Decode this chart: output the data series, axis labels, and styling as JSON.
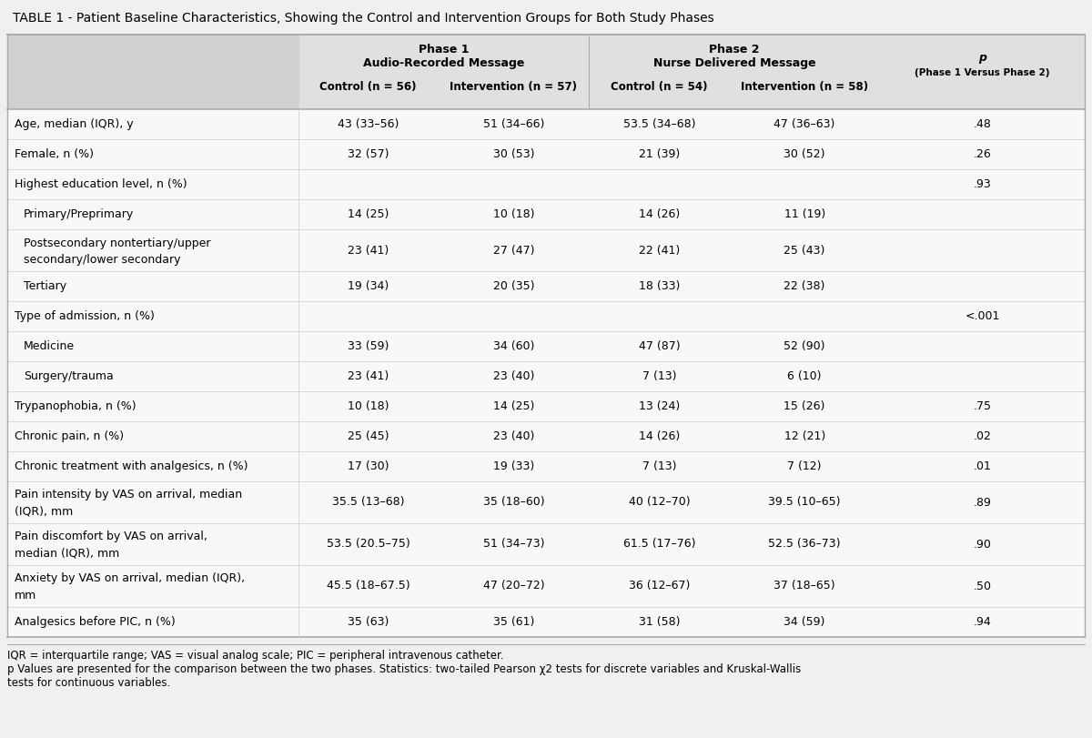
{
  "title": "TABLE 1 - Patient Baseline Characteristics, Showing the Control and Intervention Groups for Both Study Phases",
  "rows": [
    {
      "label": "Age, median (IQR), y",
      "c1": "43 (33–56)",
      "c2": "51 (34–66)",
      "c3": "53.5 (34–68)",
      "c4": "47 (36–63)",
      "p": ".48",
      "indent": false,
      "multiline": false
    },
    {
      "label": "Female, n (%)",
      "c1": "32 (57)",
      "c2": "30 (53)",
      "c3": "21 (39)",
      "c4": "30 (52)",
      "p": ".26",
      "indent": false,
      "multiline": false
    },
    {
      "label": "Highest education level, n (%)",
      "c1": "",
      "c2": "",
      "c3": "",
      "c4": "",
      "p": ".93",
      "indent": false,
      "multiline": false
    },
    {
      "label": "Primary/Preprimary",
      "c1": "14 (25)",
      "c2": "10 (18)",
      "c3": "14 (26)",
      "c4": "11 (19)",
      "p": "",
      "indent": true,
      "multiline": false
    },
    {
      "label": "Postsecondary nontertiary/upper\nsecondary/lower secondary",
      "c1": "23 (41)",
      "c2": "27 (47)",
      "c3": "22 (41)",
      "c4": "25 (43)",
      "p": "",
      "indent": true,
      "multiline": true
    },
    {
      "label": "Tertiary",
      "c1": "19 (34)",
      "c2": "20 (35)",
      "c3": "18 (33)",
      "c4": "22 (38)",
      "p": "",
      "indent": true,
      "multiline": false
    },
    {
      "label": "Type of admission, n (%)",
      "c1": "",
      "c2": "",
      "c3": "",
      "c4": "",
      "p": "<.001",
      "indent": false,
      "multiline": false
    },
    {
      "label": "Medicine",
      "c1": "33 (59)",
      "c2": "34 (60)",
      "c3": "47 (87)",
      "c4": "52 (90)",
      "p": "",
      "indent": true,
      "multiline": false
    },
    {
      "label": "Surgery/trauma",
      "c1": "23 (41)",
      "c2": "23 (40)",
      "c3": "7 (13)",
      "c4": "6 (10)",
      "p": "",
      "indent": true,
      "multiline": false
    },
    {
      "label": "Trypanophobia, n (%)",
      "c1": "10 (18)",
      "c2": "14 (25)",
      "c3": "13 (24)",
      "c4": "15 (26)",
      "p": ".75",
      "indent": false,
      "multiline": false
    },
    {
      "label": "Chronic pain, n (%)",
      "c1": "25 (45)",
      "c2": "23 (40)",
      "c3": "14 (26)",
      "c4": "12 (21)",
      "p": ".02",
      "indent": false,
      "multiline": false
    },
    {
      "label": "Chronic treatment with analgesics, n (%)",
      "c1": "17 (30)",
      "c2": "19 (33)",
      "c3": "7 (13)",
      "c4": "7 (12)",
      "p": ".01",
      "indent": false,
      "multiline": false
    },
    {
      "label": "Pain intensity by VAS on arrival, median\n(IQR), mm",
      "c1": "35.5 (13–68)",
      "c2": "35 (18–60)",
      "c3": "40 (12–70)",
      "c4": "39.5 (10–65)",
      "p": ".89",
      "indent": false,
      "multiline": true
    },
    {
      "label": "Pain discomfort by VAS on arrival,\nmedian (IQR), mm",
      "c1": "53.5 (20.5–75)",
      "c2": "51 (34–73)",
      "c3": "61.5 (17–76)",
      "c4": "52.5 (36–73)",
      "p": ".90",
      "indent": false,
      "multiline": true
    },
    {
      "label": "Anxiety by VAS on arrival, median (IQR),\nmm",
      "c1": "45.5 (18–67.5)",
      "c2": "47 (20–72)",
      "c3": "36 (12–67)",
      "c4": "37 (18–65)",
      "p": ".50",
      "indent": false,
      "multiline": true
    },
    {
      "label": "Analgesics before PIC, n (%)",
      "c1": "35 (63)",
      "c2": "35 (61)",
      "c3": "31 (58)",
      "c4": "34 (59)",
      "p": ".94",
      "indent": false,
      "multiline": false
    }
  ],
  "footnote1": "IQR = interquartile range; VAS = visual analog scale; PIC = peripheral intravenous catheter.",
  "footnote2": "p Values are presented for the comparison between the two phases. Statistics: two-tailed Pearson χ2 tests for discrete variables and Kruskal-Wallis",
  "footnote3": "tests for continuous variables.",
  "bg_color": "#f0f0f0",
  "header_bg": "#e0e0e0",
  "label_header_bg": "#d0d0d0",
  "body_bg": "#f8f8f8",
  "text_color": "#000000",
  "line_color": "#aaaaaa",
  "title_fontsize": 10.0,
  "header_fontsize": 9.0,
  "body_fontsize": 9.0,
  "footnote_fontsize": 8.5
}
